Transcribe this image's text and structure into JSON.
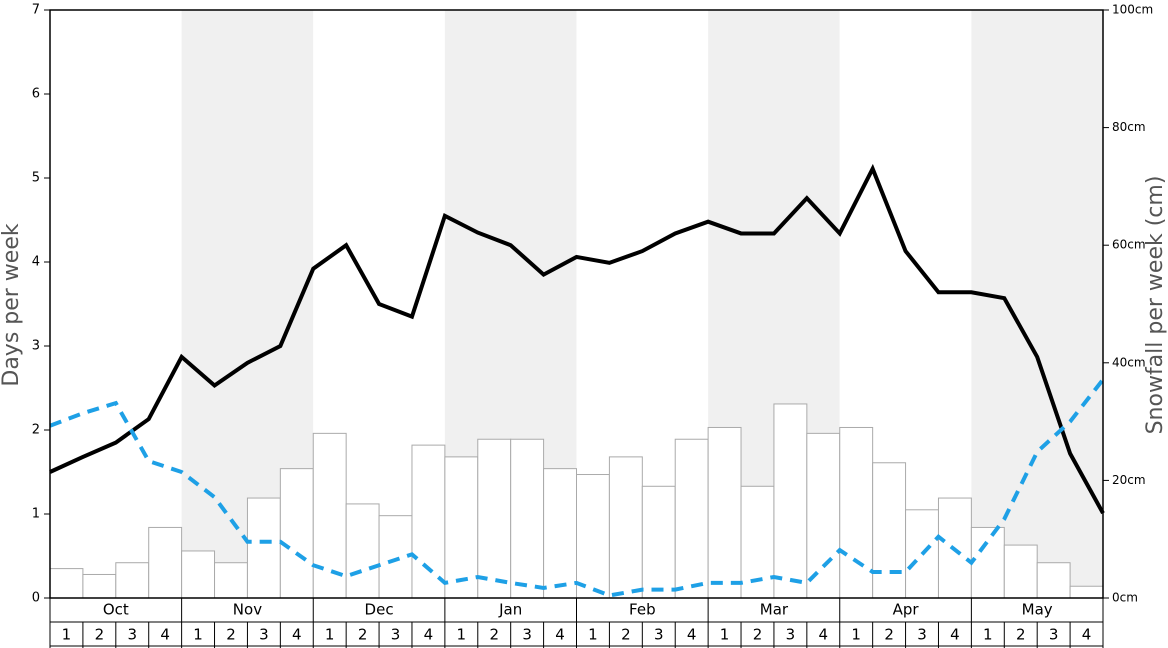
{
  "chart_data": {
    "type": "bar",
    "y_label": "Days per week",
    "y2_label": "Snowfall per week (cm)",
    "months": [
      "Oct",
      "Nov",
      "Dec",
      "Jan",
      "Feb",
      "Mar",
      "Apr",
      "May"
    ],
    "month_shading": [
      "#ffffff",
      "#f0f0f0"
    ],
    "categories": [
      "1",
      "2",
      "3",
      "4",
      "1",
      "2",
      "3",
      "4",
      "1",
      "2",
      "3",
      "4",
      "1",
      "2",
      "3",
      "4",
      "1",
      "2",
      "3",
      "4",
      "1",
      "2",
      "3",
      "4",
      "1",
      "2",
      "3",
      "4",
      "1",
      "2",
      "3",
      "4"
    ],
    "ylim": [
      0,
      7
    ],
    "yticks": [
      0,
      1,
      2,
      3,
      4,
      5,
      6,
      7
    ],
    "y2lim": [
      0,
      100
    ],
    "y2ticks": [
      {
        "value": 0,
        "label": "0cm"
      },
      {
        "value": 20,
        "label": "20cm"
      },
      {
        "value": 40,
        "label": "40cm"
      },
      {
        "value": 60,
        "label": "60cm"
      },
      {
        "value": 80,
        "label": "80cm"
      },
      {
        "value": 100,
        "label": "100cm"
      }
    ],
    "xlim": [
      0,
      32
    ],
    "bars": {
      "axis": "y2",
      "color": "#ffffff",
      "edge_color": "#aaaaaa",
      "values": [
        5,
        4,
        6,
        12,
        8,
        6,
        17,
        22,
        28,
        16,
        14,
        26,
        24,
        27,
        27,
        22,
        21,
        24,
        19,
        27,
        29,
        19,
        33,
        28,
        29,
        23,
        15,
        17,
        12,
        9,
        6,
        2
      ]
    },
    "series": [
      {
        "type": "line",
        "color": "#000000",
        "dash": false,
        "x": [
          0,
          1,
          2,
          3,
          4,
          5,
          6,
          7,
          8,
          9,
          10,
          11,
          12,
          13,
          14,
          15,
          16,
          17,
          18,
          19,
          20,
          21,
          22,
          23,
          24,
          25,
          26,
          27,
          28,
          29,
          30,
          31,
          32
        ],
        "values": [
          1.5,
          1.68,
          1.85,
          2.13,
          2.87,
          2.53,
          2.8,
          3.0,
          3.92,
          4.2,
          3.5,
          3.35,
          4.55,
          4.35,
          4.2,
          3.85,
          4.06,
          3.99,
          4.13,
          4.34,
          4.48,
          4.34,
          4.34,
          4.76,
          4.34,
          5.11,
          4.13,
          3.64,
          3.64,
          3.57,
          2.87,
          1.72,
          1.01
        ]
      },
      {
        "type": "line",
        "color": "#1ea0e6",
        "dash": true,
        "x": [
          0,
          1,
          2,
          3,
          4,
          5,
          6,
          7,
          8,
          9,
          10,
          11,
          12,
          13,
          14,
          15,
          16,
          17,
          18,
          19,
          20,
          21,
          22,
          23,
          24,
          25,
          26,
          27,
          28,
          29,
          30,
          31,
          32
        ],
        "values": [
          2.05,
          2.2,
          2.32,
          1.63,
          1.5,
          1.2,
          0.67,
          0.67,
          0.39,
          0.26,
          0.39,
          0.52,
          0.18,
          0.25,
          0.18,
          0.12,
          0.18,
          0.03,
          0.1,
          0.1,
          0.18,
          0.18,
          0.25,
          0.18,
          0.57,
          0.31,
          0.31,
          0.73,
          0.42,
          0.94,
          1.74,
          2.1,
          2.6
        ]
      }
    ]
  }
}
